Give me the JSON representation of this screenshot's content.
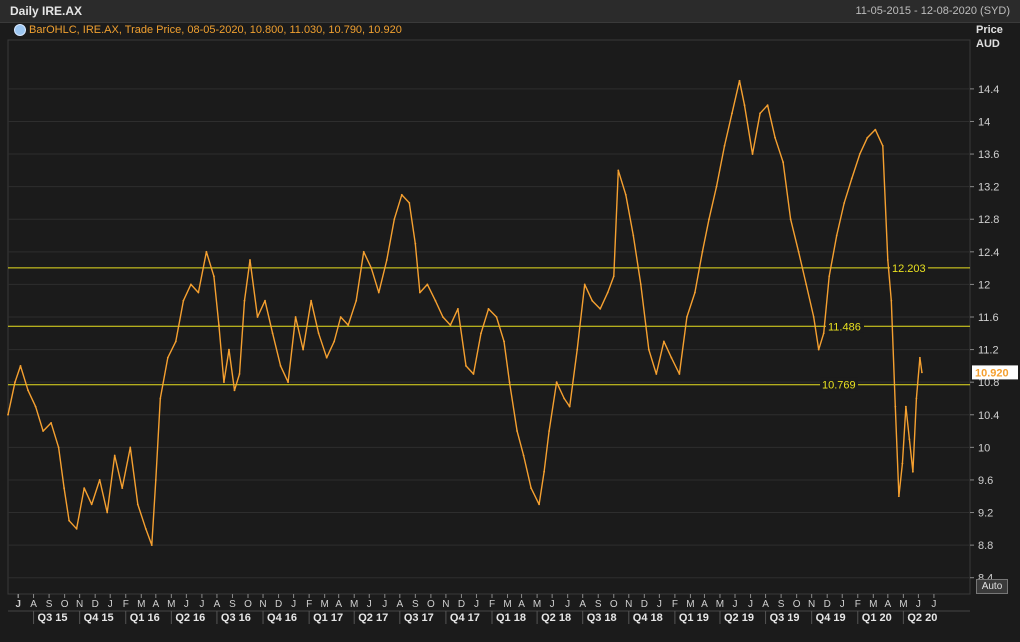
{
  "header": {
    "title": "Daily IRE.AX",
    "date_range": "11-05-2015 - 12-08-2020 (SYD)"
  },
  "legend": {
    "icon": "gear-icon",
    "text": "BarOHLC, IRE.AX, Trade Price, 08-05-2020, 10.800, 11.030, 10.790, 10.920"
  },
  "axis": {
    "y_title_line1": "Price",
    "y_title_line2": "AUD",
    "auto_label": "Auto"
  },
  "colors": {
    "background": "#1b1b1b",
    "price_line": "#f5a030",
    "level_lines": "#e8e020",
    "last_price_tag": "#ffffff"
  },
  "chart_data": {
    "type": "line",
    "title": "Daily IRE.AX",
    "ylabel": "Price AUD",
    "ylim": [
      8.2,
      15.0
    ],
    "y_ticks": [
      8.4,
      8.8,
      9.2,
      9.6,
      10,
      10.4,
      10.8,
      11.2,
      11.6,
      12,
      12.4,
      12.8,
      13.2,
      13.6,
      14,
      14.4
    ],
    "grid": true,
    "last_price": "10.920",
    "horizontal_levels": [
      {
        "label": "12.203",
        "value": 12.203
      },
      {
        "label": "11.486",
        "value": 11.486
      },
      {
        "label": "10.769",
        "value": 10.769
      }
    ],
    "x_month_ticks": [
      "J",
      "J",
      "A",
      "S",
      "O",
      "N",
      "D",
      "J",
      "F",
      "M",
      "A",
      "M",
      "J",
      "J",
      "A",
      "S",
      "O",
      "N",
      "D",
      "J",
      "F",
      "M",
      "A",
      "M",
      "J",
      "J",
      "A",
      "S",
      "O",
      "N",
      "D",
      "J",
      "F",
      "M",
      "A",
      "M",
      "J",
      "J",
      "A",
      "S",
      "O",
      "N",
      "D",
      "J",
      "F",
      "M",
      "A",
      "M",
      "J",
      "J",
      "A",
      "S",
      "O",
      "N",
      "D",
      "J",
      "F",
      "M",
      "A",
      "M",
      "J",
      "J"
    ],
    "x_quarter_labels": [
      "Q3 15",
      "Q4 15",
      "Q1 16",
      "Q2 16",
      "Q3 16",
      "Q4 16",
      "Q1 17",
      "Q2 17",
      "Q3 17",
      "Q4 17",
      "Q1 18",
      "Q2 18",
      "Q3 18",
      "Q4 18",
      "Q1 19",
      "Q2 19",
      "Q3 19",
      "Q4 19",
      "Q1 20",
      "Q2 20"
    ],
    "x_range": [
      "2015-05-11",
      "2020-08-12"
    ],
    "series": [
      {
        "values": [
          [
            "2015-05-11",
            10.4
          ],
          [
            "2015-05-25",
            10.8
          ],
          [
            "2015-06-05",
            11.0
          ],
          [
            "2015-06-20",
            10.7
          ],
          [
            "2015-07-05",
            10.5
          ],
          [
            "2015-07-20",
            10.2
          ],
          [
            "2015-08-05",
            10.3
          ],
          [
            "2015-08-20",
            10.0
          ],
          [
            "2015-08-31",
            9.5
          ],
          [
            "2015-09-10",
            9.1
          ],
          [
            "2015-09-25",
            9.0
          ],
          [
            "2015-10-10",
            9.5
          ],
          [
            "2015-10-25",
            9.3
          ],
          [
            "2015-11-10",
            9.6
          ],
          [
            "2015-11-25",
            9.2
          ],
          [
            "2015-12-10",
            9.9
          ],
          [
            "2015-12-25",
            9.5
          ],
          [
            "2016-01-10",
            10.0
          ],
          [
            "2016-01-25",
            9.3
          ],
          [
            "2016-02-10",
            9.0
          ],
          [
            "2016-02-22",
            8.8
          ],
          [
            "2016-03-01",
            9.6
          ],
          [
            "2016-03-10",
            10.6
          ],
          [
            "2016-03-25",
            11.1
          ],
          [
            "2016-04-10",
            11.3
          ],
          [
            "2016-04-25",
            11.8
          ],
          [
            "2016-05-10",
            12.0
          ],
          [
            "2016-05-25",
            11.9
          ],
          [
            "2016-06-10",
            12.4
          ],
          [
            "2016-06-25",
            12.1
          ],
          [
            "2016-07-05",
            11.5
          ],
          [
            "2016-07-15",
            10.8
          ],
          [
            "2016-07-25",
            11.2
          ],
          [
            "2016-08-05",
            10.7
          ],
          [
            "2016-08-15",
            10.9
          ],
          [
            "2016-08-25",
            11.8
          ],
          [
            "2016-09-05",
            12.3
          ],
          [
            "2016-09-20",
            11.6
          ],
          [
            "2016-10-05",
            11.8
          ],
          [
            "2016-10-20",
            11.4
          ],
          [
            "2016-11-05",
            11.0
          ],
          [
            "2016-11-20",
            10.8
          ],
          [
            "2016-12-05",
            11.6
          ],
          [
            "2016-12-20",
            11.2
          ],
          [
            "2017-01-05",
            11.8
          ],
          [
            "2017-01-20",
            11.4
          ],
          [
            "2017-02-05",
            11.1
          ],
          [
            "2017-02-20",
            11.3
          ],
          [
            "2017-03-05",
            11.6
          ],
          [
            "2017-03-20",
            11.5
          ],
          [
            "2017-04-05",
            11.8
          ],
          [
            "2017-04-20",
            12.4
          ],
          [
            "2017-05-05",
            12.2
          ],
          [
            "2017-05-20",
            11.9
          ],
          [
            "2017-06-05",
            12.3
          ],
          [
            "2017-06-20",
            12.8
          ],
          [
            "2017-07-05",
            13.1
          ],
          [
            "2017-07-20",
            13.0
          ],
          [
            "2017-08-01",
            12.5
          ],
          [
            "2017-08-10",
            11.9
          ],
          [
            "2017-08-25",
            12.0
          ],
          [
            "2017-09-10",
            11.8
          ],
          [
            "2017-09-25",
            11.6
          ],
          [
            "2017-10-10",
            11.5
          ],
          [
            "2017-10-25",
            11.7
          ],
          [
            "2017-11-10",
            11.0
          ],
          [
            "2017-11-25",
            10.9
          ],
          [
            "2017-12-10",
            11.4
          ],
          [
            "2017-12-25",
            11.7
          ],
          [
            "2018-01-10",
            11.6
          ],
          [
            "2018-01-25",
            11.3
          ],
          [
            "2018-02-05",
            10.8
          ],
          [
            "2018-02-20",
            10.2
          ],
          [
            "2018-03-05",
            9.9
          ],
          [
            "2018-03-20",
            9.5
          ],
          [
            "2018-04-05",
            9.3
          ],
          [
            "2018-04-15",
            9.7
          ],
          [
            "2018-04-25",
            10.2
          ],
          [
            "2018-05-10",
            10.8
          ],
          [
            "2018-05-25",
            10.6
          ],
          [
            "2018-06-05",
            10.5
          ],
          [
            "2018-06-20",
            11.2
          ],
          [
            "2018-07-05",
            12.0
          ],
          [
            "2018-07-20",
            11.8
          ],
          [
            "2018-08-05",
            11.7
          ],
          [
            "2018-08-20",
            11.9
          ],
          [
            "2018-09-01",
            12.1
          ],
          [
            "2018-09-10",
            13.4
          ],
          [
            "2018-09-25",
            13.1
          ],
          [
            "2018-10-10",
            12.6
          ],
          [
            "2018-10-25",
            12.0
          ],
          [
            "2018-11-10",
            11.2
          ],
          [
            "2018-11-25",
            10.9
          ],
          [
            "2018-12-10",
            11.3
          ],
          [
            "2018-12-25",
            11.1
          ],
          [
            "2019-01-10",
            10.9
          ],
          [
            "2019-01-25",
            11.6
          ],
          [
            "2019-02-10",
            11.9
          ],
          [
            "2019-02-25",
            12.4
          ],
          [
            "2019-03-10",
            12.8
          ],
          [
            "2019-03-25",
            13.2
          ],
          [
            "2019-04-10",
            13.7
          ],
          [
            "2019-04-25",
            14.1
          ],
          [
            "2019-05-10",
            14.5
          ],
          [
            "2019-05-20",
            14.2
          ],
          [
            "2019-06-05",
            13.6
          ],
          [
            "2019-06-20",
            14.1
          ],
          [
            "2019-07-05",
            14.2
          ],
          [
            "2019-07-20",
            13.8
          ],
          [
            "2019-08-05",
            13.5
          ],
          [
            "2019-08-20",
            12.8
          ],
          [
            "2019-09-05",
            12.4
          ],
          [
            "2019-09-20",
            12.0
          ],
          [
            "2019-10-05",
            11.6
          ],
          [
            "2019-10-15",
            11.2
          ],
          [
            "2019-10-25",
            11.4
          ],
          [
            "2019-11-05",
            12.1
          ],
          [
            "2019-11-20",
            12.6
          ],
          [
            "2019-12-05",
            13.0
          ],
          [
            "2019-12-20",
            13.3
          ],
          [
            "2020-01-05",
            13.6
          ],
          [
            "2020-01-20",
            13.8
          ],
          [
            "2020-02-05",
            13.9
          ],
          [
            "2020-02-20",
            13.7
          ],
          [
            "2020-03-01",
            12.3
          ],
          [
            "2020-03-08",
            11.8
          ],
          [
            "2020-03-16",
            10.5
          ],
          [
            "2020-03-23",
            9.4
          ],
          [
            "2020-03-30",
            9.8
          ],
          [
            "2020-04-06",
            10.5
          ],
          [
            "2020-04-13",
            10.1
          ],
          [
            "2020-04-20",
            9.7
          ],
          [
            "2020-04-27",
            10.6
          ],
          [
            "2020-05-04",
            11.1
          ],
          [
            "2020-05-08",
            10.92
          ]
        ]
      }
    ]
  }
}
